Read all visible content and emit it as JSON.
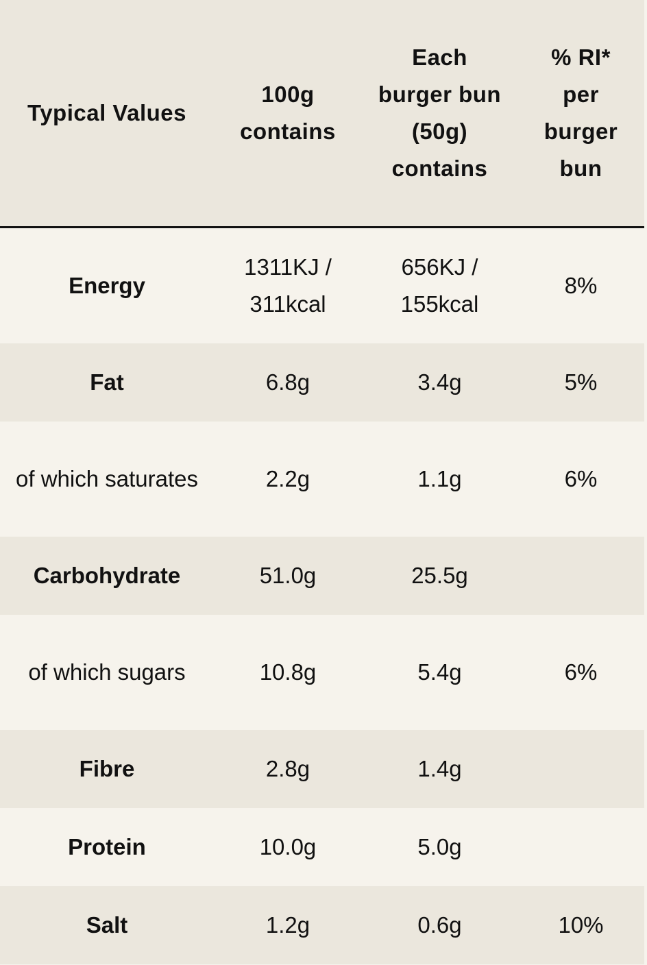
{
  "table": {
    "headers": [
      "Typical Values",
      "100g contains",
      "Each burger bun (50g) contains",
      "% RI* per burger bun"
    ],
    "rows": [
      [
        "Energy",
        "1311KJ / 311kcal",
        "656KJ / 155kcal",
        "8%"
      ],
      [
        "Fat",
        "6.8g",
        "3.4g",
        "5%"
      ],
      [
        "of which saturates",
        "2.2g",
        "1.1g",
        "6%"
      ],
      [
        "Carbohydrate",
        "51.0g",
        "25.5g"
      ],
      [
        "of which sugars",
        "10.8g",
        "5.4g",
        "6%"
      ],
      [
        "Fibre",
        "2.8g",
        "1.4g"
      ],
      [
        "Protein",
        "10.0g",
        "5.0g"
      ],
      [
        "Salt",
        "1.2g",
        "0.6g",
        "10%"
      ]
    ]
  }
}
